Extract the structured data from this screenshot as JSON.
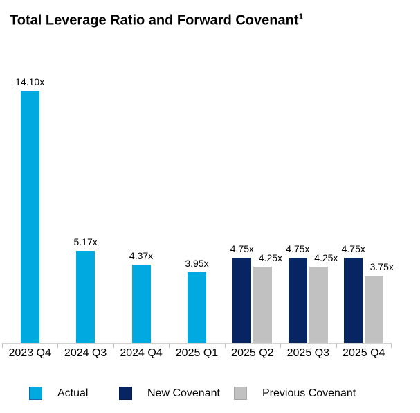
{
  "header": {
    "title": "Total Leverage Ratio and Forward Covenant",
    "superscript": "1"
  },
  "colors": {
    "actual": "#00A9E0",
    "actual_border": "#1B66AE",
    "new_covenant": "#082563",
    "new_covenant_border": "#061A45",
    "previous_covenant": "#C1C1C1",
    "previous_covenant_border": "#A6A6A6",
    "axis_line": "#D2D2D2",
    "tick": "#BFBFBF"
  },
  "chart_data": {
    "type": "bar",
    "title": "Total Leverage Ratio and Forward Covenant",
    "categories": [
      "2023 Q4",
      "2024 Q3",
      "2024 Q4",
      "2025 Q1",
      "2025 Q2",
      "2025 Q3",
      "2025 Q4"
    ],
    "series": [
      {
        "name": "Actual",
        "key": "actual",
        "values": [
          14.1,
          5.17,
          4.37,
          3.95,
          null,
          null,
          null
        ],
        "labels": [
          "14.10x",
          "5.17x",
          "4.37x",
          "3.95x",
          null,
          null,
          null
        ]
      },
      {
        "name": "New Covenant",
        "key": "new_covenant",
        "values": [
          null,
          null,
          null,
          null,
          4.75,
          4.75,
          4.75
        ],
        "labels": [
          null,
          null,
          null,
          null,
          "4.75x",
          "4.75x",
          "4.75x"
        ]
      },
      {
        "name": "Previous Covenant",
        "key": "previous_covenant",
        "values": [
          null,
          null,
          null,
          null,
          4.25,
          4.25,
          3.75
        ],
        "labels": [
          null,
          null,
          null,
          null,
          "4.25x",
          "4.25x",
          "3.75x"
        ]
      }
    ],
    "xlabel": "",
    "ylabel": "",
    "ylim": [
      0,
      16
    ],
    "grid": false,
    "value_label_suffix": "x",
    "legend_position": "bottom"
  },
  "legend": {
    "items": [
      {
        "label": "Actual",
        "key": "actual"
      },
      {
        "label": "New Covenant",
        "key": "new_covenant"
      },
      {
        "label": "Previous Covenant",
        "key": "previous_covenant"
      }
    ]
  }
}
